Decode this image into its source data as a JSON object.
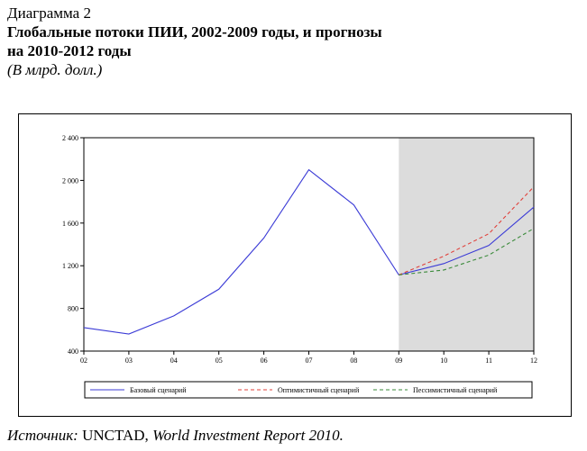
{
  "caption": {
    "label": "Диаграмма 2",
    "title_line1": "Глобальные потоки ПИИ, 2002-2009 годы, и прогнозы",
    "title_line2": "на 2010-2012 годы",
    "units": "(В млрд. долл.)"
  },
  "source": {
    "label": "Источник:",
    "org": "UNCTAD,",
    "report": "World Investment Report 2010."
  },
  "colors": {
    "base": "#3b3bd6",
    "optimistic": "#e0403a",
    "pessimistic": "#3a8a3a",
    "forecast_shade": "#dcdcdc"
  },
  "chart_data": {
    "type": "line",
    "categories": [
      "02",
      "03",
      "04",
      "05",
      "06",
      "07",
      "08",
      "09",
      "10",
      "11",
      "12"
    ],
    "ylim": [
      400,
      2400
    ],
    "yticks": [
      400,
      800,
      1200,
      1600,
      2000,
      2400
    ],
    "ytick_labels": [
      "400",
      "800",
      "1 200",
      "1 600",
      "2 000",
      "2 400"
    ],
    "forecast_shaded_from": "09",
    "grid": false,
    "legend_position": "bottom",
    "series": [
      {
        "name": "Базовый сценарий",
        "style": "solid",
        "color": "#3b3bd6",
        "values": [
          620,
          560,
          730,
          980,
          1460,
          2100,
          1770,
          1114,
          1220,
          1390,
          1750
        ]
      },
      {
        "name": "Оптимистичный сценарий",
        "style": "dashed",
        "color": "#e0403a",
        "values": [
          null,
          null,
          null,
          null,
          null,
          null,
          null,
          1114,
          1290,
          1500,
          1940
        ]
      },
      {
        "name": "Пессимистичный сценарий",
        "style": "dashed",
        "color": "#3a8a3a",
        "values": [
          null,
          null,
          null,
          null,
          null,
          null,
          null,
          1114,
          1160,
          1300,
          1550
        ]
      }
    ]
  }
}
